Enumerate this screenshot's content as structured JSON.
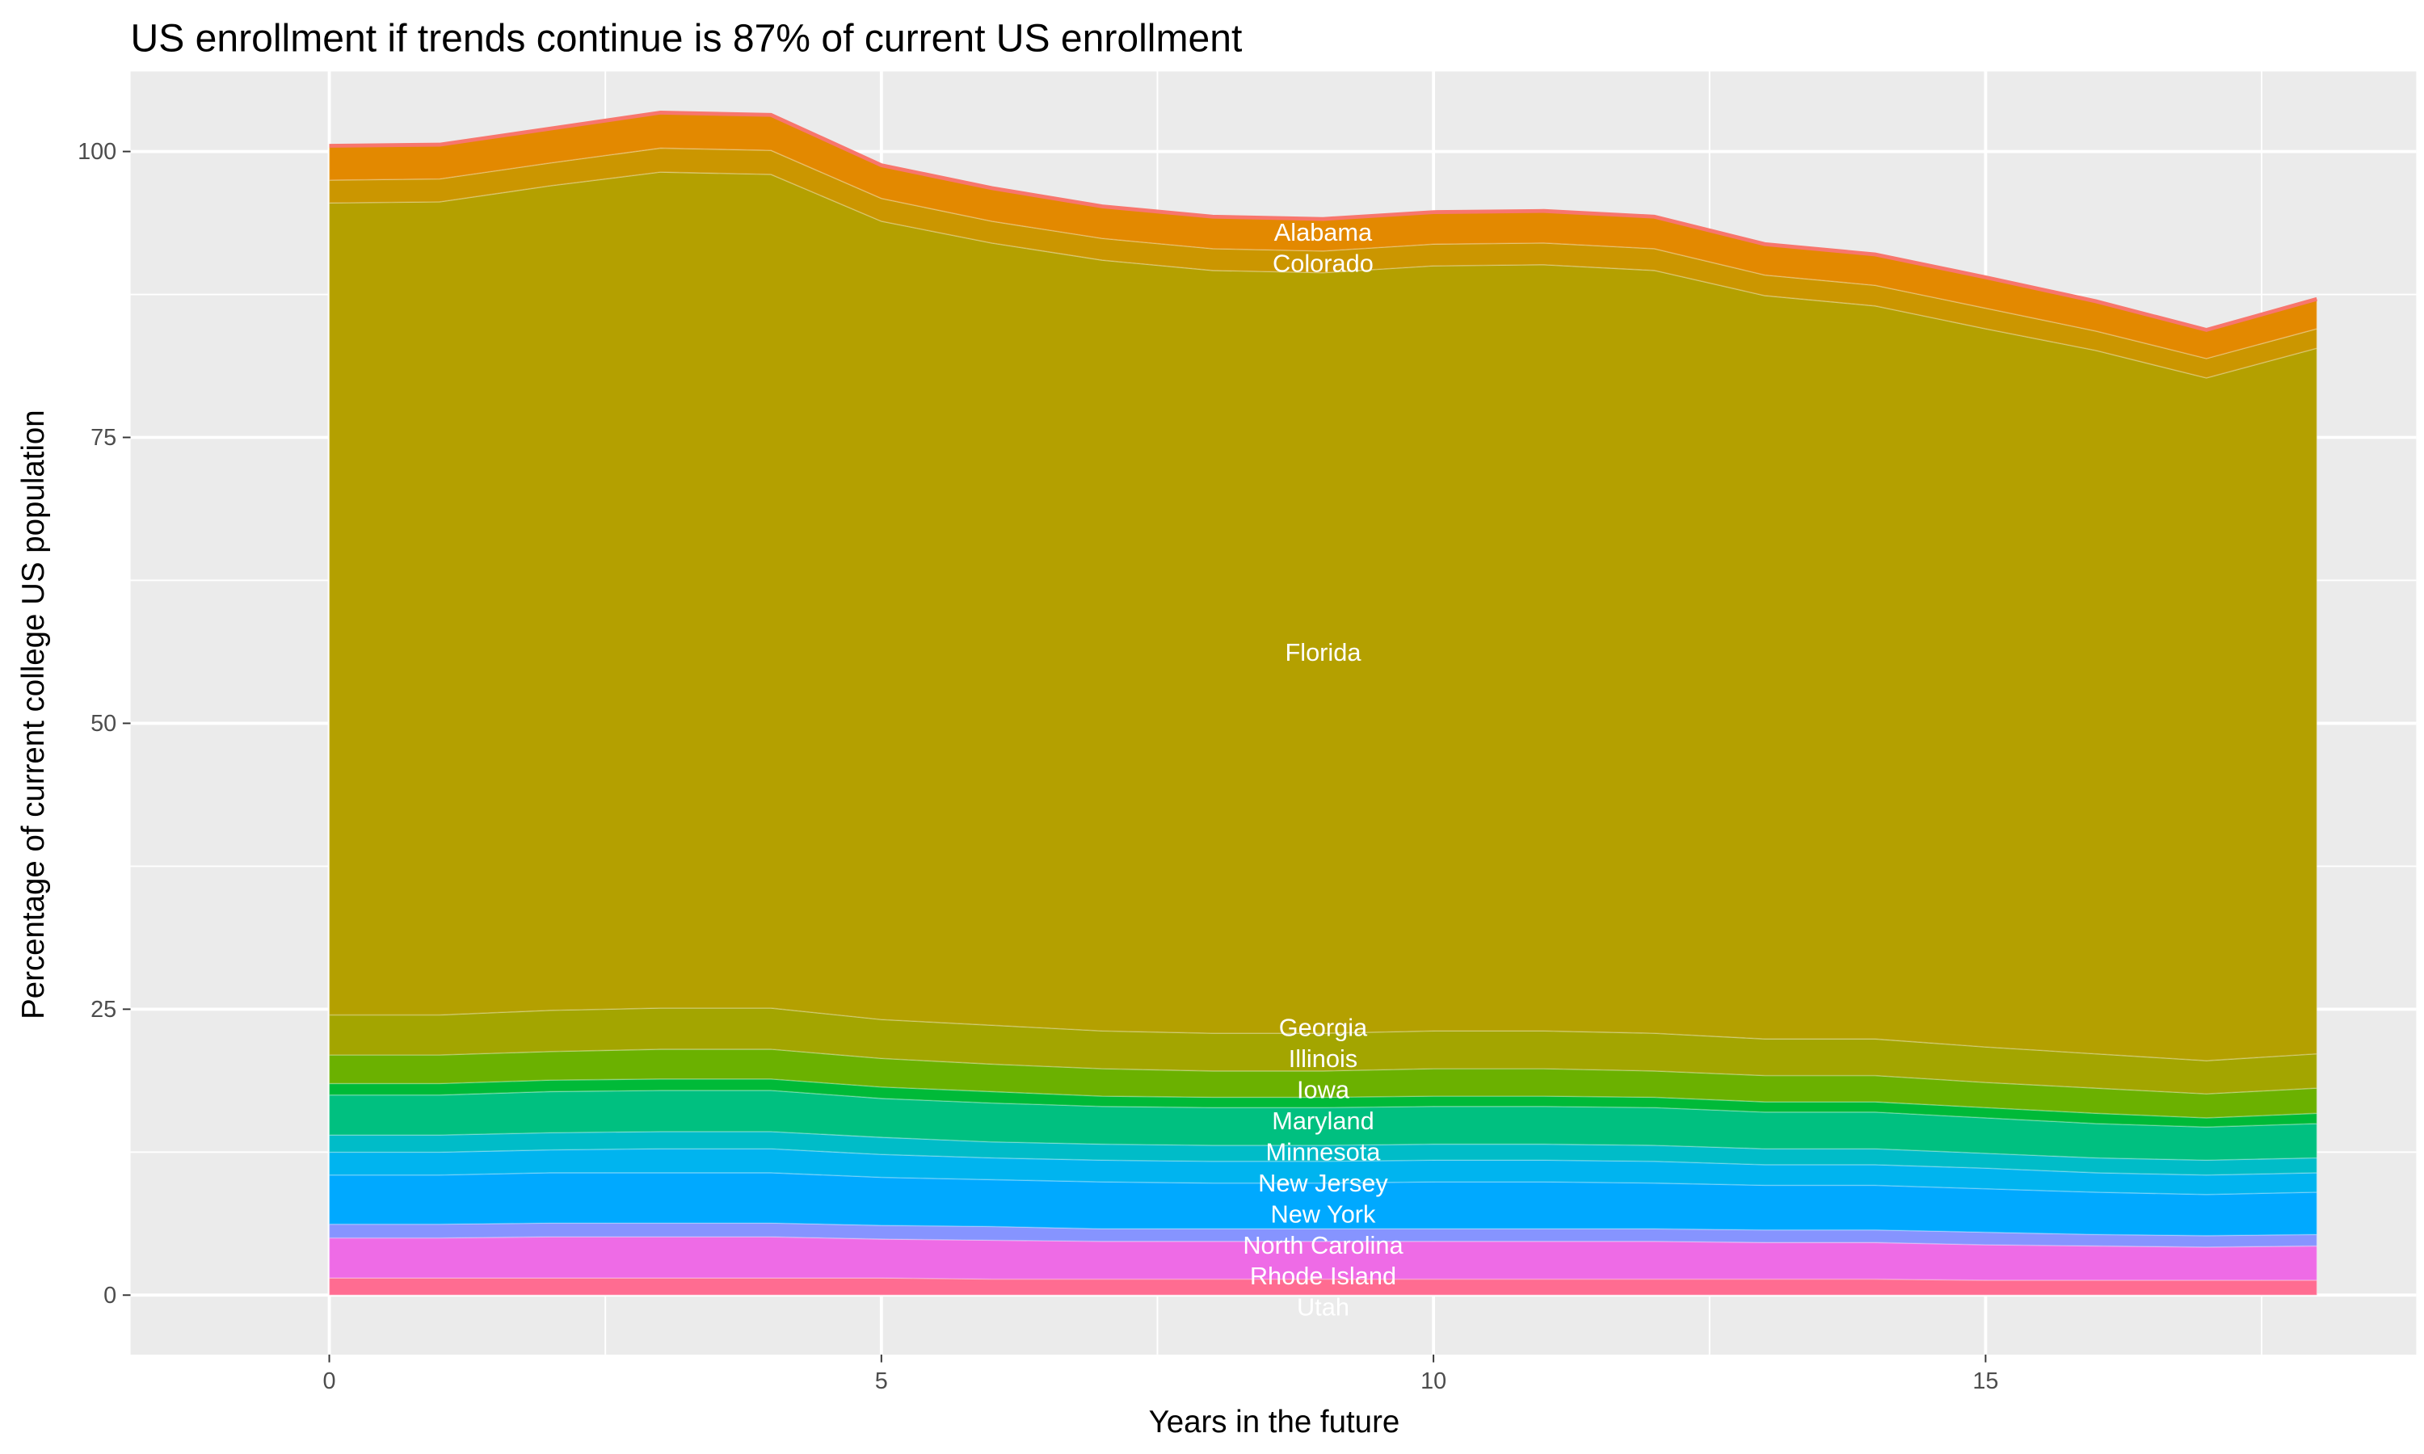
{
  "chart_data": {
    "type": "area",
    "title": "US enrollment if trends continue is 87% of current US enrollment",
    "xlabel": "Years in the future",
    "ylabel": "Percentage of current college US population",
    "xlim": [
      -1.8,
      18.9
    ],
    "ylim": [
      -5.2,
      107
    ],
    "x_ticks": [
      0,
      5,
      10,
      15
    ],
    "y_ticks": [
      0,
      25,
      50,
      75,
      100
    ],
    "grid": true,
    "stacked": true,
    "label_x": 9,
    "x": [
      0,
      1,
      2,
      3,
      4,
      5,
      6,
      7,
      8,
      9,
      10,
      11,
      12,
      13,
      14,
      15,
      16,
      17,
      18
    ],
    "series": [
      {
        "name": "Utah",
        "color": "#FF6C91",
        "values": [
          1.5,
          1.5,
          1.5,
          1.5,
          1.5,
          1.5,
          1.4,
          1.4,
          1.4,
          1.4,
          1.4,
          1.4,
          1.4,
          1.4,
          1.4,
          1.3,
          1.3,
          1.3,
          1.3
        ]
      },
      {
        "name": "Rhode Island",
        "color": "#EE6BE6",
        "values": [
          3.5,
          3.5,
          3.6,
          3.6,
          3.6,
          3.4,
          3.4,
          3.3,
          3.3,
          3.3,
          3.3,
          3.3,
          3.3,
          3.2,
          3.2,
          3.1,
          3.0,
          2.9,
          3.0
        ]
      },
      {
        "name": "North Carolina",
        "color": "#8694FF",
        "values": [
          1.2,
          1.2,
          1.2,
          1.2,
          1.2,
          1.2,
          1.2,
          1.1,
          1.1,
          1.1,
          1.1,
          1.1,
          1.1,
          1.1,
          1.1,
          1.1,
          1.0,
          1.0,
          1.0
        ]
      },
      {
        "name": "New York",
        "color": "#00A9FF",
        "values": [
          4.3,
          4.3,
          4.4,
          4.4,
          4.4,
          4.2,
          4.1,
          4.1,
          4.0,
          4.0,
          4.1,
          4.1,
          4.0,
          3.9,
          3.9,
          3.8,
          3.7,
          3.6,
          3.7
        ]
      },
      {
        "name": "New Jersey",
        "color": "#00B4EF",
        "values": [
          2.0,
          2.0,
          2.0,
          2.1,
          2.1,
          2.0,
          1.9,
          1.9,
          1.9,
          1.9,
          1.9,
          1.9,
          1.9,
          1.8,
          1.8,
          1.8,
          1.7,
          1.7,
          1.7
        ]
      },
      {
        "name": "Minnesota",
        "color": "#00BCC8",
        "values": [
          1.5,
          1.5,
          1.5,
          1.5,
          1.5,
          1.5,
          1.4,
          1.4,
          1.4,
          1.4,
          1.4,
          1.4,
          1.4,
          1.4,
          1.4,
          1.3,
          1.3,
          1.3,
          1.3
        ]
      },
      {
        "name": "Maryland",
        "color": "#00C080",
        "values": [
          3.5,
          3.5,
          3.6,
          3.6,
          3.6,
          3.4,
          3.4,
          3.3,
          3.3,
          3.3,
          3.3,
          3.3,
          3.3,
          3.2,
          3.2,
          3.1,
          3.0,
          2.9,
          3.0
        ]
      },
      {
        "name": "Iowa",
        "color": "#00BA38",
        "values": [
          1.0,
          1.0,
          1.0,
          1.0,
          1.0,
          1.0,
          1.0,
          0.9,
          0.9,
          0.9,
          0.9,
          0.9,
          0.9,
          0.9,
          0.9,
          0.9,
          0.9,
          0.8,
          0.9
        ]
      },
      {
        "name": "Illinois",
        "color": "#6BB100",
        "values": [
          2.5,
          2.5,
          2.5,
          2.6,
          2.6,
          2.5,
          2.4,
          2.4,
          2.3,
          2.3,
          2.4,
          2.4,
          2.3,
          2.3,
          2.3,
          2.2,
          2.2,
          2.1,
          2.2
        ]
      },
      {
        "name": "Georgia",
        "color": "#A3A500",
        "values": [
          3.5,
          3.5,
          3.6,
          3.6,
          3.6,
          3.4,
          3.4,
          3.3,
          3.3,
          3.3,
          3.3,
          3.3,
          3.3,
          3.2,
          3.2,
          3.1,
          3.0,
          2.9,
          3.0
        ]
      },
      {
        "name": "Florida",
        "color": "#B4A000",
        "values": [
          71,
          71.1,
          72.1,
          73.1,
          72.9,
          69.8,
          68.4,
          67.4,
          66.7,
          66.5,
          66.9,
          67.0,
          66.7,
          65.0,
          64.1,
          62.8,
          61.5,
          59.7,
          61.7
        ]
      },
      {
        "name": "Colorado",
        "color": "#CB9600",
        "values": [
          2.0,
          2.0,
          2.0,
          2.1,
          2.1,
          2.0,
          1.9,
          1.9,
          1.9,
          1.9,
          1.9,
          1.9,
          1.9,
          1.8,
          1.8,
          1.8,
          1.7,
          1.7,
          1.7
        ]
      },
      {
        "name": "Alabama",
        "color": "#E38900",
        "values": [
          3.0,
          3.0,
          3.0,
          3.1,
          3.1,
          2.9,
          2.9,
          2.8,
          2.8,
          2.8,
          2.8,
          2.8,
          2.8,
          2.7,
          2.7,
          2.7,
          2.6,
          2.5,
          2.6
        ]
      }
    ],
    "colors": {
      "panel": "#EBEBEB",
      "grid": "#FFFFFF",
      "top_edge": "#F8766D",
      "label": "#FFFFFF",
      "text": "#000000",
      "tick": "#4D4D4D"
    }
  }
}
